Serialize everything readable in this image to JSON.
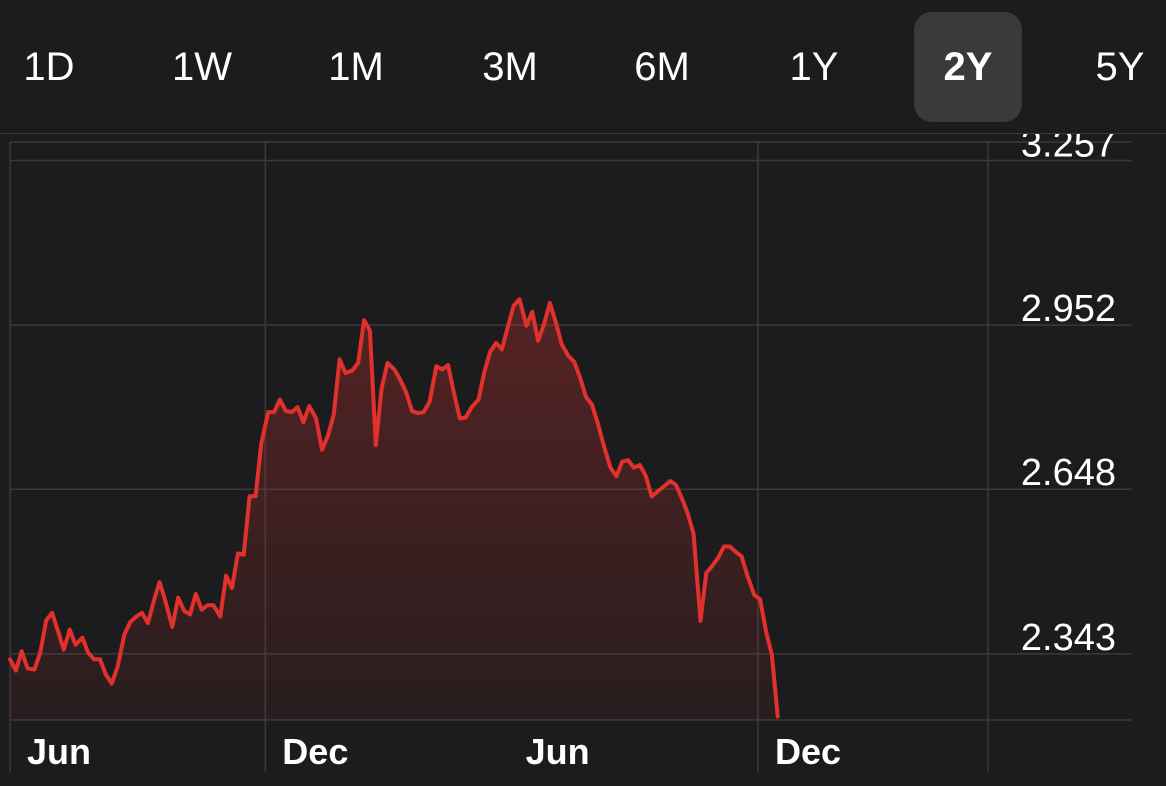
{
  "range_selector": {
    "options": [
      "1D",
      "1W",
      "1M",
      "3M",
      "6M",
      "1Y",
      "2Y",
      "5Y"
    ],
    "selected": "2Y"
  },
  "colors": {
    "background": "#1c1c1e",
    "line": "#e0312d",
    "grid": "#3a3a3c",
    "selected_bg": "#3a3a3c",
    "text": "#ffffff"
  },
  "chart_data": {
    "type": "area",
    "title": "",
    "xlabel": "",
    "ylabel": "",
    "ylim": [
      2.2205,
      3.2913
    ],
    "y_ticks": [
      "3.257",
      "2.952",
      "2.648",
      "2.343"
    ],
    "y_tick_values": [
      3.257,
      2.952,
      2.648,
      2.343
    ],
    "x_ticks": [
      "Jun",
      "Dec",
      "Jun",
      "Dec"
    ],
    "x_tick_positions": [
      0,
      0.261,
      0.5098,
      0.7648
    ],
    "x_gridlines": [
      0.261,
      0.7648,
      1.0
    ],
    "grid": true,
    "series": [
      {
        "color": "#e0312d",
        "points": [
          [
            0.0,
            2.333
          ],
          [
            0.006,
            2.312
          ],
          [
            0.012,
            2.348
          ],
          [
            0.018,
            2.316
          ],
          [
            0.025,
            2.314
          ],
          [
            0.031,
            2.346
          ],
          [
            0.037,
            2.405
          ],
          [
            0.043,
            2.419
          ],
          [
            0.049,
            2.386
          ],
          [
            0.055,
            2.351
          ],
          [
            0.061,
            2.388
          ],
          [
            0.067,
            2.36
          ],
          [
            0.074,
            2.373
          ],
          [
            0.08,
            2.345
          ],
          [
            0.086,
            2.333
          ],
          [
            0.092,
            2.333
          ],
          [
            0.098,
            2.305
          ],
          [
            0.104,
            2.288
          ],
          [
            0.11,
            2.319
          ],
          [
            0.117,
            2.379
          ],
          [
            0.123,
            2.402
          ],
          [
            0.129,
            2.412
          ],
          [
            0.135,
            2.419
          ],
          [
            0.141,
            2.4
          ],
          [
            0.147,
            2.441
          ],
          [
            0.153,
            2.476
          ],
          [
            0.159,
            2.44
          ],
          [
            0.166,
            2.393
          ],
          [
            0.172,
            2.447
          ],
          [
            0.178,
            2.423
          ],
          [
            0.184,
            2.416
          ],
          [
            0.19,
            2.454
          ],
          [
            0.196,
            2.425
          ],
          [
            0.202,
            2.433
          ],
          [
            0.208,
            2.433
          ],
          [
            0.215,
            2.412
          ],
          [
            0.221,
            2.488
          ],
          [
            0.227,
            2.465
          ],
          [
            0.233,
            2.529
          ],
          [
            0.239,
            2.527
          ],
          [
            0.245,
            2.635
          ],
          [
            0.251,
            2.635
          ],
          [
            0.257,
            2.733
          ],
          [
            0.264,
            2.791
          ],
          [
            0.27,
            2.791
          ],
          [
            0.276,
            2.814
          ],
          [
            0.282,
            2.793
          ],
          [
            0.288,
            2.791
          ],
          [
            0.294,
            2.8
          ],
          [
            0.3,
            2.772
          ],
          [
            0.306,
            2.802
          ],
          [
            0.313,
            2.779
          ],
          [
            0.319,
            2.721
          ],
          [
            0.325,
            2.747
          ],
          [
            0.331,
            2.786
          ],
          [
            0.337,
            2.889
          ],
          [
            0.343,
            2.863
          ],
          [
            0.35,
            2.868
          ],
          [
            0.356,
            2.882
          ],
          [
            0.362,
            2.961
          ],
          [
            0.368,
            2.942
          ],
          [
            0.374,
            2.73
          ],
          [
            0.38,
            2.835
          ],
          [
            0.386,
            2.882
          ],
          [
            0.393,
            2.87
          ],
          [
            0.399,
            2.851
          ],
          [
            0.405,
            2.828
          ],
          [
            0.411,
            2.793
          ],
          [
            0.417,
            2.789
          ],
          [
            0.423,
            2.791
          ],
          [
            0.429,
            2.81
          ],
          [
            0.436,
            2.876
          ],
          [
            0.442,
            2.87
          ],
          [
            0.448,
            2.878
          ],
          [
            0.454,
            2.826
          ],
          [
            0.46,
            2.779
          ],
          [
            0.466,
            2.781
          ],
          [
            0.472,
            2.8
          ],
          [
            0.479,
            2.814
          ],
          [
            0.485,
            2.865
          ],
          [
            0.491,
            2.903
          ],
          [
            0.497,
            2.919
          ],
          [
            0.503,
            2.907
          ],
          [
            0.509,
            2.949
          ],
          [
            0.515,
            2.988
          ],
          [
            0.521,
            3.0
          ],
          [
            0.528,
            2.951
          ],
          [
            0.534,
            2.977
          ],
          [
            0.54,
            2.923
          ],
          [
            0.546,
            2.954
          ],
          [
            0.552,
            2.993
          ],
          [
            0.558,
            2.958
          ],
          [
            0.564,
            2.917
          ],
          [
            0.571,
            2.895
          ],
          [
            0.577,
            2.884
          ],
          [
            0.583,
            2.854
          ],
          [
            0.589,
            2.819
          ],
          [
            0.595,
            2.805
          ],
          [
            0.601,
            2.77
          ],
          [
            0.607,
            2.73
          ],
          [
            0.614,
            2.688
          ],
          [
            0.62,
            2.672
          ],
          [
            0.626,
            2.699
          ],
          [
            0.632,
            2.702
          ],
          [
            0.638,
            2.688
          ],
          [
            0.644,
            2.693
          ],
          [
            0.65,
            2.673
          ],
          [
            0.656,
            2.635
          ],
          [
            0.663,
            2.645
          ],
          [
            0.669,
            2.654
          ],
          [
            0.675,
            2.663
          ],
          [
            0.681,
            2.656
          ],
          [
            0.687,
            2.631
          ],
          [
            0.693,
            2.603
          ],
          [
            0.699,
            2.565
          ],
          [
            0.706,
            2.404
          ],
          [
            0.712,
            2.493
          ],
          [
            0.718,
            2.506
          ],
          [
            0.724,
            2.521
          ],
          [
            0.73,
            2.542
          ],
          [
            0.736,
            2.542
          ],
          [
            0.742,
            2.532
          ],
          [
            0.748,
            2.524
          ],
          [
            0.754,
            2.488
          ],
          [
            0.761,
            2.452
          ],
          [
            0.767,
            2.444
          ],
          [
            0.773,
            2.385
          ],
          [
            0.779,
            2.341
          ],
          [
            0.785,
            2.227
          ]
        ]
      }
    ]
  }
}
